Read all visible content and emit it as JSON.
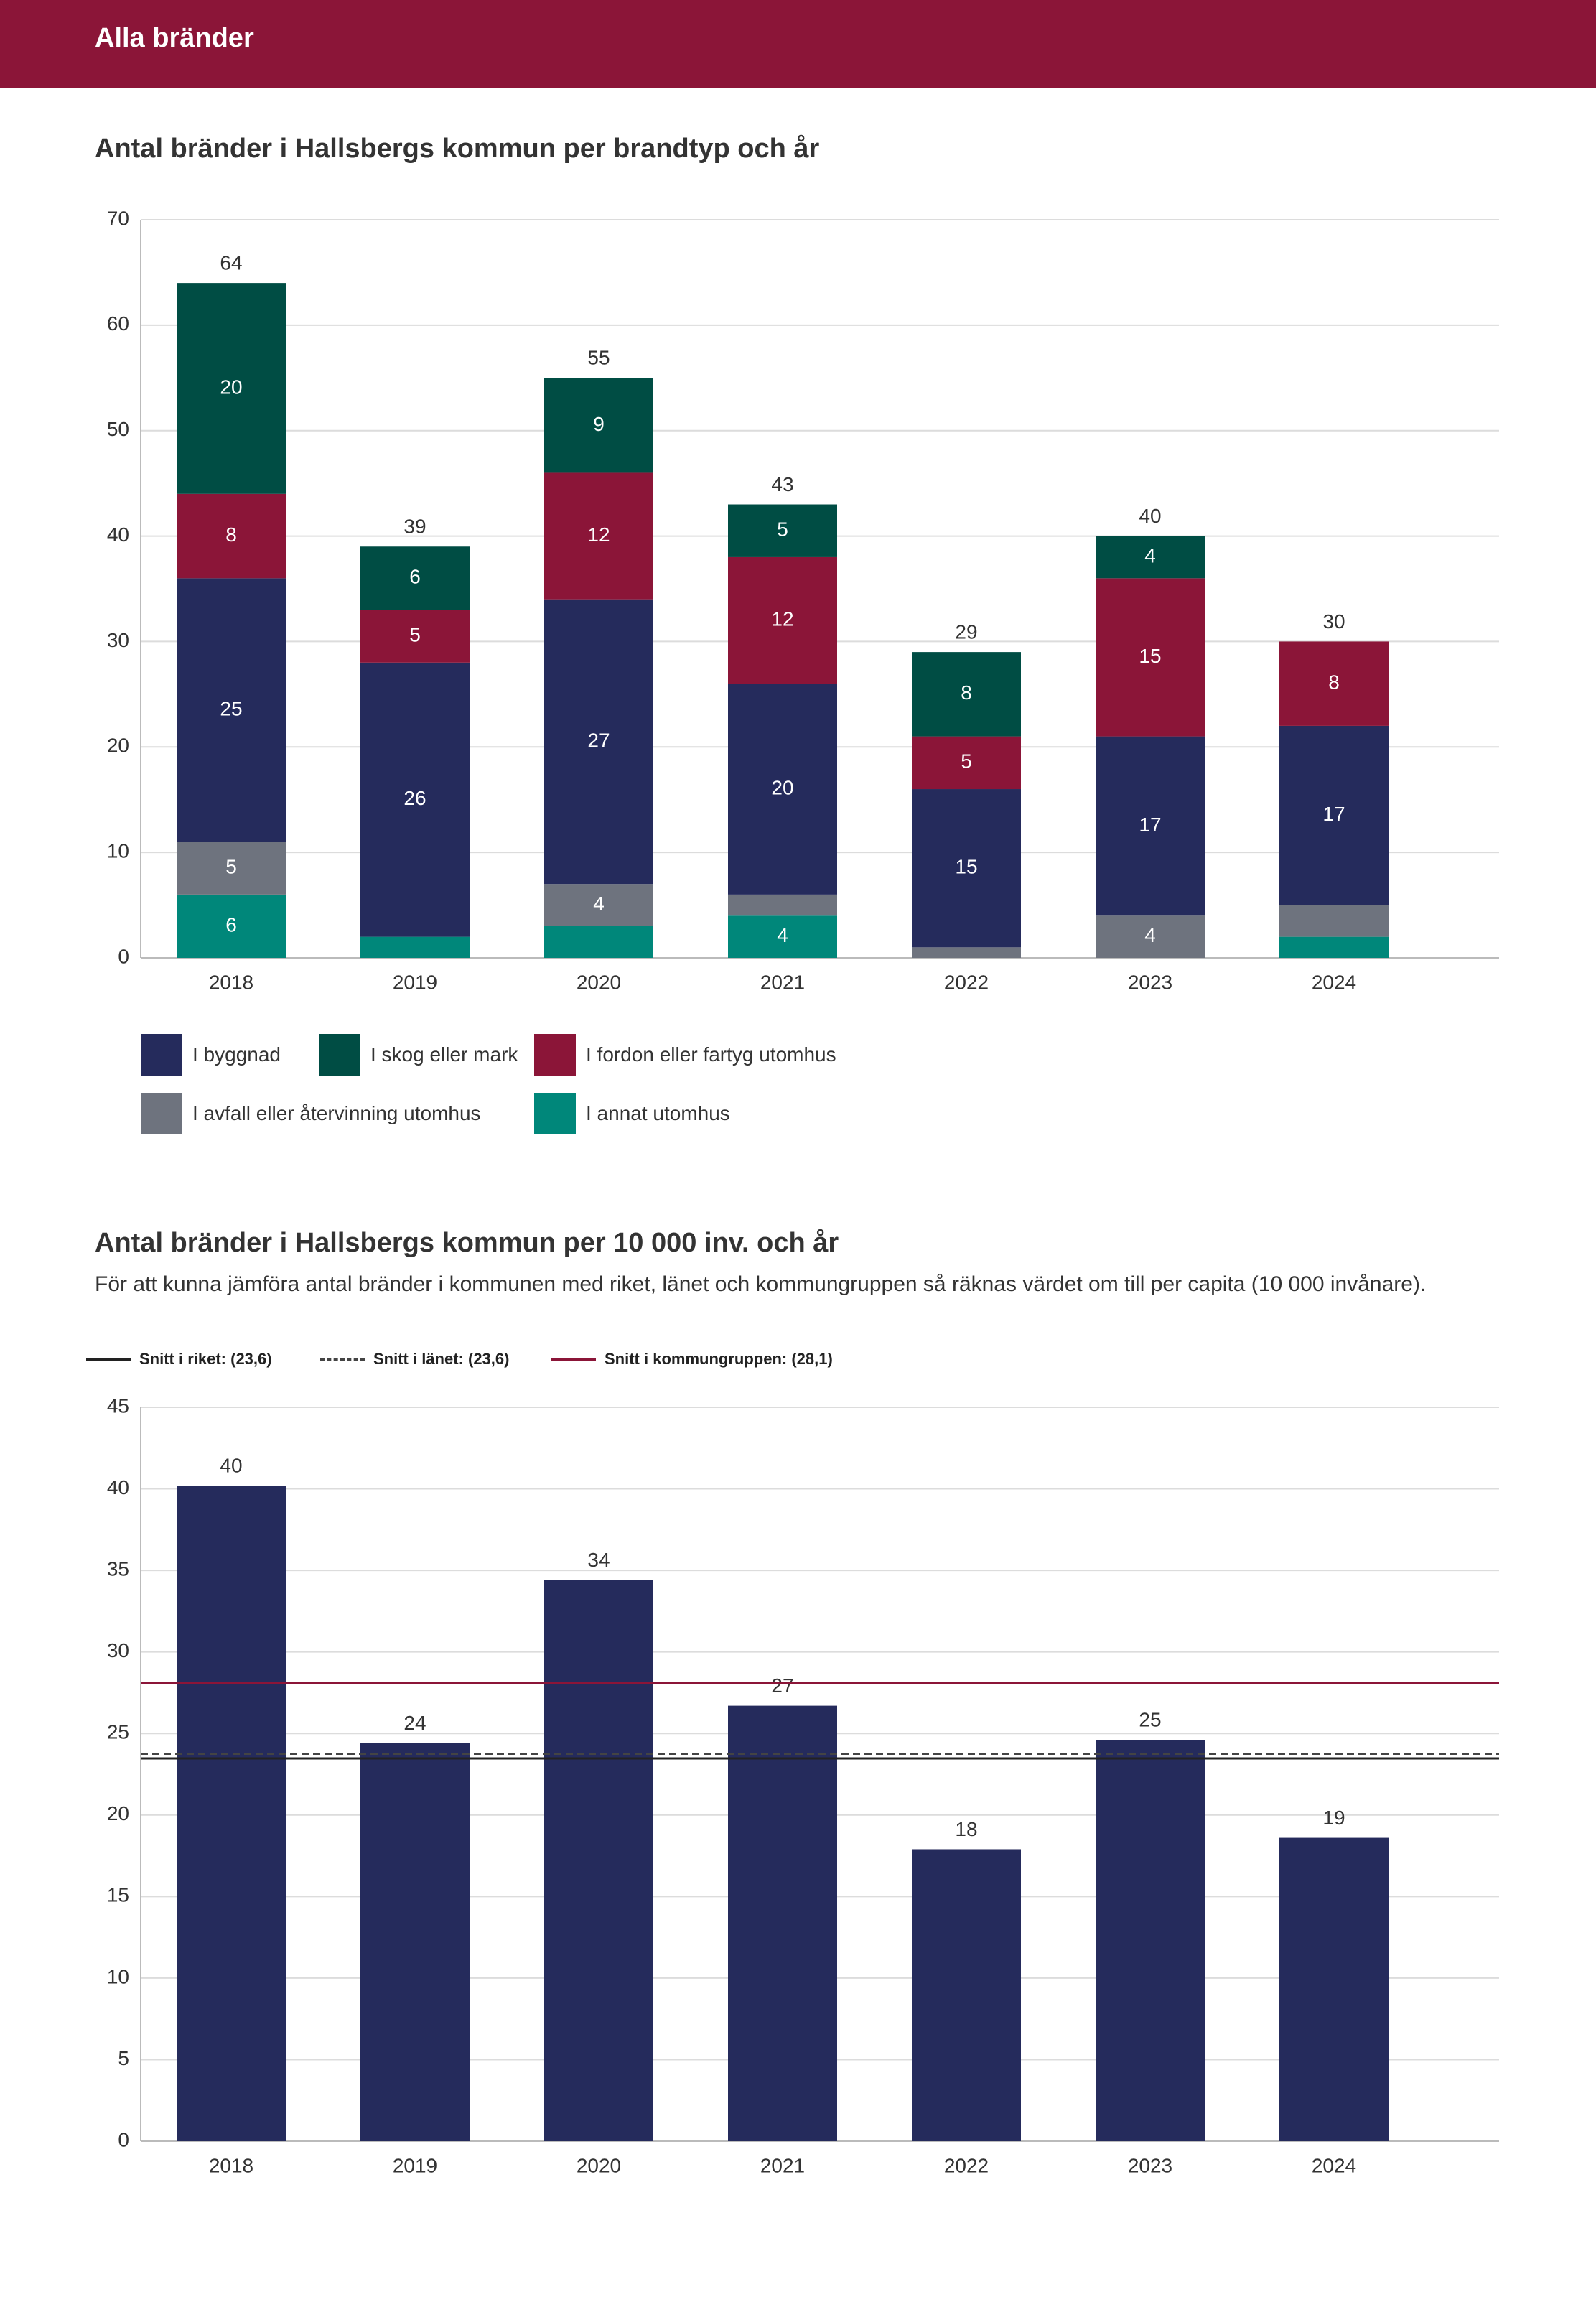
{
  "header": {
    "title": "Alla bränder"
  },
  "charts": {
    "chart1": {
      "title": "Antal bränder i Hallsbergs kommun per brandtyp och år"
    },
    "chart2": {
      "title": "Antal bränder i Hallsbergs kommun per 10 000 inv. och år",
      "subtitle": "För att kunna jämföra antal bränder i kommunen med riket, länet och kommungruppen så räknas värdet om till per capita (10 000 invånare)."
    }
  },
  "chart_data": [
    {
      "type": "bar",
      "stacked": true,
      "title": "Antal bränder i Hallsbergs kommun per brandtyp och år",
      "categories": [
        "2018",
        "2019",
        "2020",
        "2021",
        "2022",
        "2023",
        "2024"
      ],
      "ylim": [
        0,
        70
      ],
      "yticks": [
        0,
        10,
        20,
        30,
        40,
        50,
        60,
        70
      ],
      "grid": true,
      "legend_position": "bottom",
      "series": [
        {
          "name": "I annat utomhus",
          "color": "#00877a",
          "values": [
            6,
            2,
            3,
            4,
            0,
            0,
            2
          ],
          "labels": [
            "6",
            "",
            "",
            "4",
            "",
            "",
            ""
          ]
        },
        {
          "name": "I avfall eller återvinning utomhus",
          "color": "#6e737e",
          "values": [
            5,
            0,
            4,
            2,
            1,
            4,
            3
          ],
          "labels": [
            "5",
            "",
            "4",
            "",
            "",
            "4",
            ""
          ]
        },
        {
          "name": "I byggnad",
          "color": "#252b5c",
          "values": [
            25,
            26,
            27,
            20,
            15,
            17,
            17
          ],
          "labels": [
            "25",
            "26",
            "27",
            "20",
            "15",
            "17",
            "17"
          ]
        },
        {
          "name": "I fordon eller fartyg utomhus",
          "color": "#8b1538",
          "values": [
            8,
            5,
            12,
            12,
            5,
            15,
            8
          ],
          "labels": [
            "8",
            "5",
            "12",
            "12",
            "5",
            "15",
            "8"
          ]
        },
        {
          "name": "I skog eller mark",
          "color": "#004d44",
          "values": [
            20,
            6,
            9,
            5,
            8,
            4,
            0
          ],
          "labels": [
            "20",
            "6",
            "9",
            "5",
            "8",
            "4",
            ""
          ]
        }
      ],
      "totals": [
        "64",
        "39",
        "55",
        "43",
        "29",
        "40",
        "30"
      ],
      "legend_order": [
        "I byggnad",
        "I skog eller mark",
        "I fordon eller fartyg utomhus",
        "I avfall eller återvinning utomhus",
        "I annat utomhus"
      ]
    },
    {
      "type": "bar",
      "title": "Antal bränder i Hallsbergs kommun per 10 000 inv. och år",
      "categories": [
        "2018",
        "2019",
        "2020",
        "2021",
        "2022",
        "2023",
        "2024"
      ],
      "ylim": [
        0,
        45
      ],
      "yticks": [
        0,
        5,
        10,
        15,
        20,
        25,
        30,
        35,
        40,
        45
      ],
      "grid": true,
      "legend_position": "top-left",
      "series": [
        {
          "color": "#252b5c",
          "values": [
            40.2,
            24.4,
            34.4,
            26.7,
            17.9,
            24.6,
            18.6
          ],
          "labels": [
            "40",
            "24",
            "34",
            "27",
            "18",
            "25",
            "19"
          ]
        }
      ],
      "reference_lines": [
        {
          "name": "Snitt i riket: (23,6)",
          "value": 23.6,
          "color": "#222222",
          "style": "solid"
        },
        {
          "name": "Snitt i länet: (23,6)",
          "value": 23.6,
          "color": "#444444",
          "style": "dashed"
        },
        {
          "name": "Snitt i kommungruppen: (28,1)",
          "value": 28.1,
          "color": "#8b1538",
          "style": "solid"
        }
      ]
    }
  ]
}
